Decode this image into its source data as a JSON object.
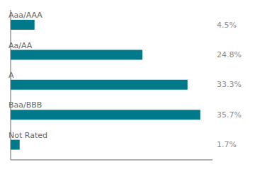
{
  "chart_data": {
    "type": "bar",
    "orientation": "horizontal",
    "categories": [
      "Aaa/AAA",
      "Aa/AA",
      "A",
      "Baa/BBB",
      "Not Rated"
    ],
    "values": [
      4.5,
      24.8,
      33.3,
      35.7,
      1.7
    ],
    "value_labels": [
      "4.5%",
      "24.8%",
      "33.3%",
      "35.7%",
      "1.7%"
    ],
    "data_labels": true,
    "color": "#007a8a",
    "xlim": [
      0,
      38
    ],
    "tick_labels": "y",
    "grid": false
  }
}
